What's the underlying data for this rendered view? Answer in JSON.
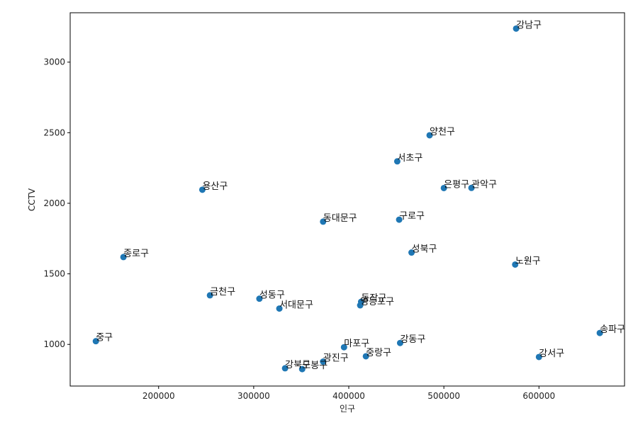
{
  "chart_data": {
    "type": "scatter",
    "title": "",
    "xlabel": "인구",
    "ylabel": "CCTV",
    "xlim": [
      107000,
      690000
    ],
    "ylim": [
      705,
      3350
    ],
    "xticks": [
      200000,
      300000,
      400000,
      500000,
      600000
    ],
    "yticks": [
      1000,
      1500,
      2000,
      2500,
      3000
    ],
    "grid": false,
    "color": "#1f77b4",
    "points": [
      {
        "label": "강남구",
        "x": 576000,
        "y": 3238
      },
      {
        "label": "양천구",
        "x": 485000,
        "y": 2482
      },
      {
        "label": "서초구",
        "x": 451000,
        "y": 2297
      },
      {
        "label": "은평구",
        "x": 500000,
        "y": 2108
      },
      {
        "label": "관악구",
        "x": 529000,
        "y": 2109
      },
      {
        "label": "용산구",
        "x": 246000,
        "y": 2096
      },
      {
        "label": "동대문구",
        "x": 373000,
        "y": 1870
      },
      {
        "label": "구로구",
        "x": 453000,
        "y": 1884
      },
      {
        "label": "성북구",
        "x": 466000,
        "y": 1651
      },
      {
        "label": "종로구",
        "x": 163000,
        "y": 1619
      },
      {
        "label": "노원구",
        "x": 575000,
        "y": 1566
      },
      {
        "label": "금천구",
        "x": 254000,
        "y": 1348
      },
      {
        "label": "성동구",
        "x": 306000,
        "y": 1324
      },
      {
        "label": "동작구",
        "x": 413000,
        "y": 1302
      },
      {
        "label": "영등포구",
        "x": 412000,
        "y": 1277
      },
      {
        "label": "서대문구",
        "x": 327000,
        "y": 1254
      },
      {
        "label": "송파구",
        "x": 664000,
        "y": 1081
      },
      {
        "label": "중구",
        "x": 134000,
        "y": 1023
      },
      {
        "label": "강동구",
        "x": 454000,
        "y": 1010
      },
      {
        "label": "마포구",
        "x": 395000,
        "y": 980
      },
      {
        "label": "강서구",
        "x": 600000,
        "y": 911
      },
      {
        "label": "중랑구",
        "x": 418000,
        "y": 916
      },
      {
        "label": "광진구",
        "x": 373000,
        "y": 878
      },
      {
        "label": "강북구",
        "x": 333000,
        "y": 831
      },
      {
        "label": "도봉구",
        "x": 351000,
        "y": 825
      }
    ]
  }
}
